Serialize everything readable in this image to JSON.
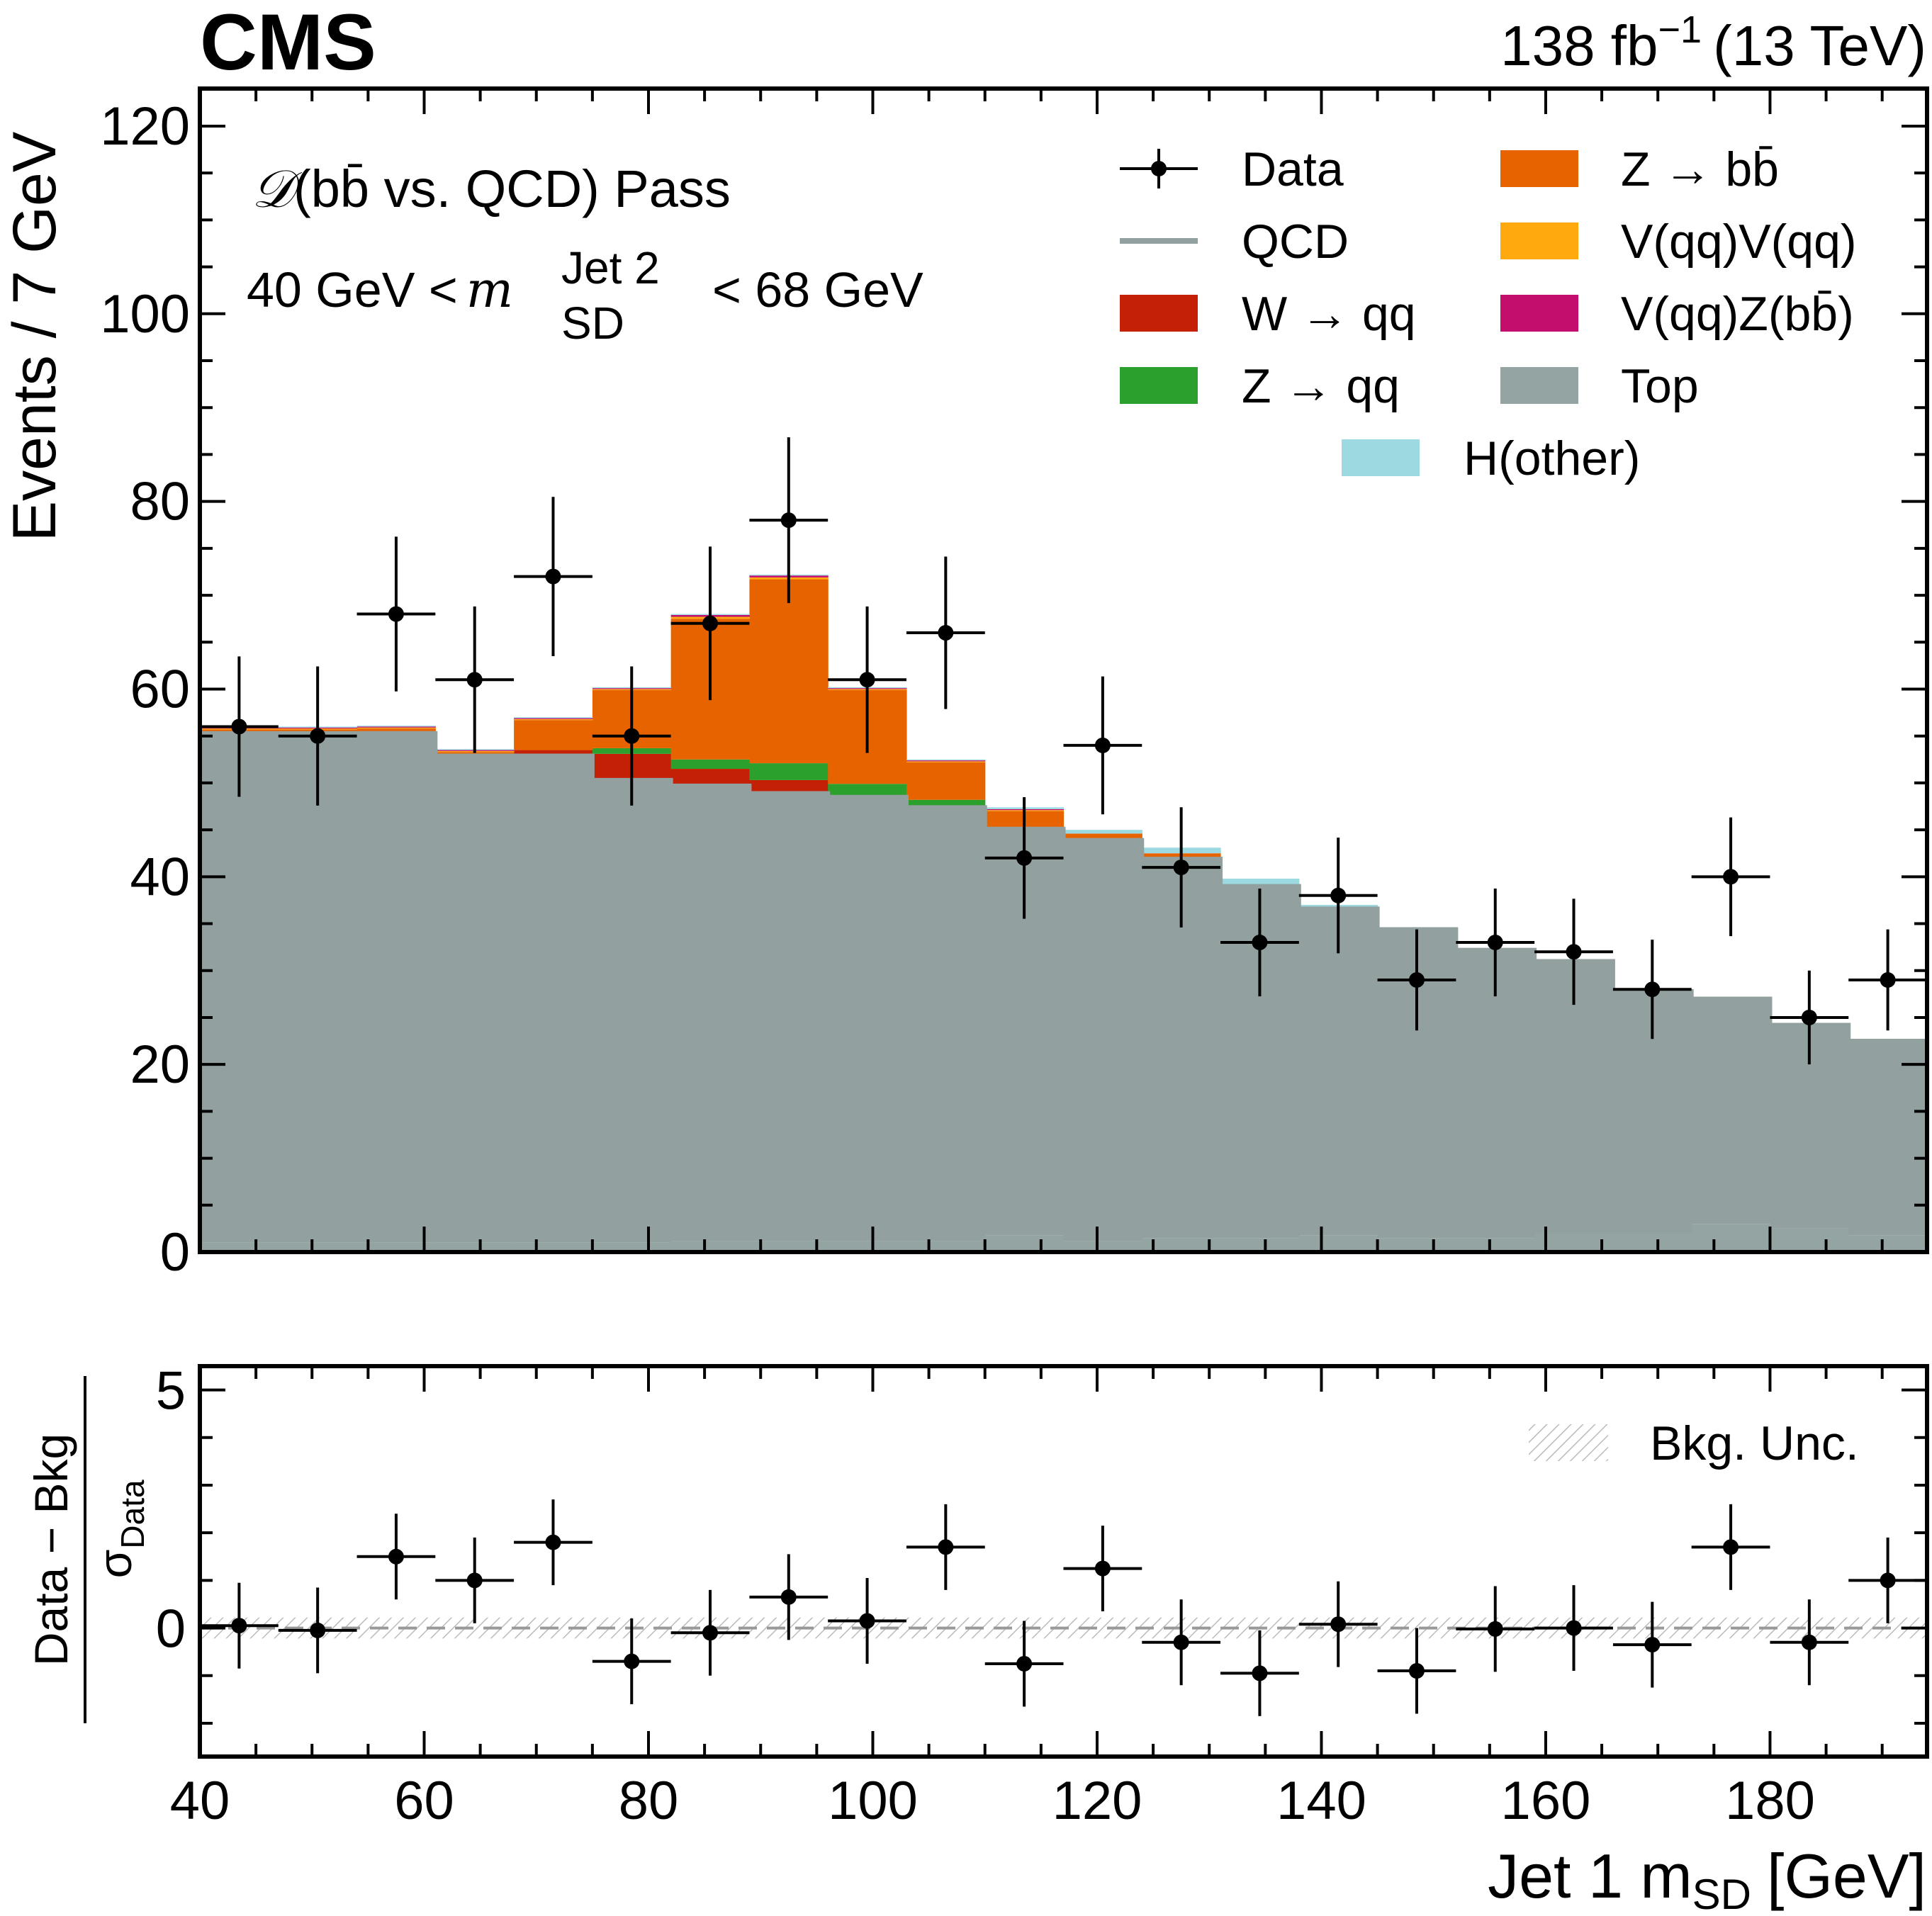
{
  "header": {
    "experiment": "CMS",
    "lumi_prefix": "138 fb",
    "lumi_exp": "−1",
    "energy": "(13 TeV)"
  },
  "colors": {
    "qcd": "#92A0A0",
    "top": "#94A4A2",
    "w_qq": "#C42006",
    "z_qq": "#2CA02C",
    "z_bb": "#E76300",
    "vv": "#FFA90E",
    "vz_bb": "#C40E6E",
    "h_other": "#9CD9E0",
    "data": "#000000",
    "unc_hatch": "#BBBBBB",
    "zero_line": "#999999"
  },
  "chart_data": [
    {
      "type": "bar",
      "panel": "main",
      "stacked": true,
      "ylabel": "Events / 7 GeV",
      "ylim": [
        0,
        124
      ],
      "xlim": [
        40,
        194
      ],
      "x_ticks": [
        40,
        60,
        80,
        100,
        120,
        140,
        160,
        180
      ],
      "y_ticks": [
        0,
        20,
        40,
        60,
        80,
        100,
        120
      ],
      "bin_edges": [
        40,
        47,
        54,
        61,
        68,
        75,
        82,
        89,
        96,
        103,
        110,
        117,
        124,
        131,
        138,
        145,
        152,
        159,
        166,
        173,
        180,
        187,
        194
      ],
      "annotations": {
        "category": "(bb̄ vs. QCD) Pass",
        "category_symbol": "𝒟",
        "mass_window_lo": "40 GeV <",
        "mass_var": "m",
        "mass_sup": "Jet 2",
        "mass_sub": "SD",
        "mass_window_hi": "< 68 GeV"
      },
      "series": [
        {
          "name": "Top",
          "key": "top",
          "values": [
            1.0,
            1.0,
            1.0,
            1.0,
            1.0,
            1.0,
            1.2,
            1.2,
            1.2,
            1.2,
            1.8,
            1.2,
            1.5,
            1.5,
            1.8,
            1.5,
            1.5,
            2.0,
            2.0,
            3.0,
            2.5,
            1.8
          ]
        },
        {
          "name": "QCD",
          "key": "qcd",
          "values": [
            54.3,
            54.3,
            54.3,
            51.9,
            51.9,
            49.3,
            48.5,
            47.7,
            47.3,
            46.2,
            43.3,
            42.7,
            40.4,
            37.5,
            34.8,
            32.9,
            30.7,
            29.0,
            25.8,
            24.0,
            21.7,
            20.7
          ]
        },
        {
          "name": "W → qq",
          "key": "w_qq",
          "values": [
            0.1,
            0.1,
            0.2,
            0.2,
            0.6,
            2.8,
            1.8,
            1.4,
            0.2,
            0.1,
            0.1,
            0.1,
            0,
            0,
            0,
            0,
            0,
            0,
            0,
            0,
            0,
            0
          ]
        },
        {
          "name": "Z → qq",
          "key": "z_qq",
          "values": [
            0,
            0,
            0,
            0,
            0,
            0.6,
            1.0,
            1.8,
            1.2,
            0.7,
            0,
            0,
            0,
            0,
            0,
            0,
            0,
            0,
            0,
            0,
            0,
            0
          ]
        },
        {
          "name": "Z → bb̄",
          "key": "z_bb",
          "values": [
            0.3,
            0.3,
            0.3,
            0.2,
            3.2,
            6.2,
            15.0,
            19.6,
            10.0,
            4.0,
            1.8,
            0.6,
            0.6,
            0,
            0,
            0,
            0,
            0,
            0,
            0,
            0,
            0
          ]
        },
        {
          "name": "V(qq)V(qq)",
          "key": "vv",
          "values": [
            0.1,
            0.1,
            0.1,
            0.1,
            0.1,
            0.1,
            0.2,
            0.2,
            0.1,
            0.1,
            0.1,
            0,
            0,
            0,
            0,
            0,
            0,
            0,
            0,
            0,
            0,
            0
          ]
        },
        {
          "name": "V(qq)Z(bb̄)",
          "key": "vz_bb",
          "values": [
            0.1,
            0.1,
            0.1,
            0.1,
            0.1,
            0.1,
            0.2,
            0.2,
            0.1,
            0.1,
            0.1,
            0,
            0,
            0,
            0,
            0,
            0,
            0,
            0,
            0,
            0,
            0
          ]
        },
        {
          "name": "H(other)",
          "key": "h_other",
          "values": [
            0.1,
            0.1,
            0.1,
            0.1,
            0.1,
            0.1,
            0.1,
            0.1,
            0.1,
            0.1,
            0.2,
            0.4,
            0.6,
            0.8,
            0.4,
            0.1,
            0,
            0,
            0,
            0,
            0,
            0
          ]
        }
      ],
      "data": {
        "name": "Data",
        "x": [
          43.5,
          50.5,
          57.5,
          64.5,
          71.5,
          78.5,
          85.5,
          92.5,
          99.5,
          106.5,
          113.5,
          120.5,
          127.5,
          134.5,
          141.5,
          148.5,
          155.5,
          162.5,
          169.5,
          176.5,
          183.5,
          190.5
        ],
        "y": [
          56,
          55,
          68,
          61,
          72,
          55,
          67,
          78,
          61,
          66,
          42,
          54,
          41,
          33,
          38,
          29,
          33,
          32,
          28,
          40,
          25,
          29
        ]
      },
      "legend": {
        "placement": "top-right",
        "entries": [
          {
            "label": "Data",
            "kind": "data"
          },
          {
            "label": "Z → bb̄",
            "kind": "fill",
            "key": "z_bb"
          },
          {
            "label": "QCD",
            "kind": "line",
            "key": "qcd"
          },
          {
            "label": "V(qq)V(qq)",
            "kind": "fill",
            "key": "vv"
          },
          {
            "label": "W → qq",
            "kind": "fill",
            "key": "w_qq"
          },
          {
            "label": "V(qq)Z(bb̄)",
            "kind": "fill",
            "key": "vz_bb"
          },
          {
            "label": "Z → qq",
            "kind": "fill",
            "key": "z_qq"
          },
          {
            "label": "Top",
            "kind": "fill",
            "key": "top"
          },
          {
            "label": "H(other)",
            "kind": "fill",
            "key": "h_other"
          }
        ]
      }
    },
    {
      "type": "scatter",
      "panel": "ratio",
      "ylabel_num": "Data − Bkg",
      "ylabel_den": "σ",
      "ylabel_den_sub": "Data",
      "xlabel": "Jet 1 m",
      "xlabel_sub": "SD",
      "xlabel_unit": "[GeV]",
      "ylim": [
        -2.7,
        5.5
      ],
      "xlim": [
        40,
        194
      ],
      "x_ticks": [
        40,
        60,
        80,
        100,
        120,
        140,
        160,
        180
      ],
      "y_ticks": [
        0,
        5
      ],
      "x": [
        43.5,
        50.5,
        57.5,
        64.5,
        71.5,
        78.5,
        85.5,
        92.5,
        99.5,
        106.5,
        113.5,
        120.5,
        127.5,
        134.5,
        141.5,
        148.5,
        155.5,
        162.5,
        169.5,
        176.5,
        183.5,
        190.5
      ],
      "y": [
        0.05,
        -0.05,
        1.5,
        1.0,
        1.8,
        -0.7,
        -0.1,
        0.65,
        0.15,
        1.7,
        -0.75,
        1.25,
        -0.3,
        -0.95,
        0.08,
        -0.9,
        -0.02,
        0.0,
        -0.35,
        1.7,
        -0.3,
        1.0
      ],
      "legend": {
        "placement": "top-right",
        "entries": [
          {
            "label": "Bkg. Unc.",
            "kind": "hatch"
          }
        ]
      }
    }
  ]
}
